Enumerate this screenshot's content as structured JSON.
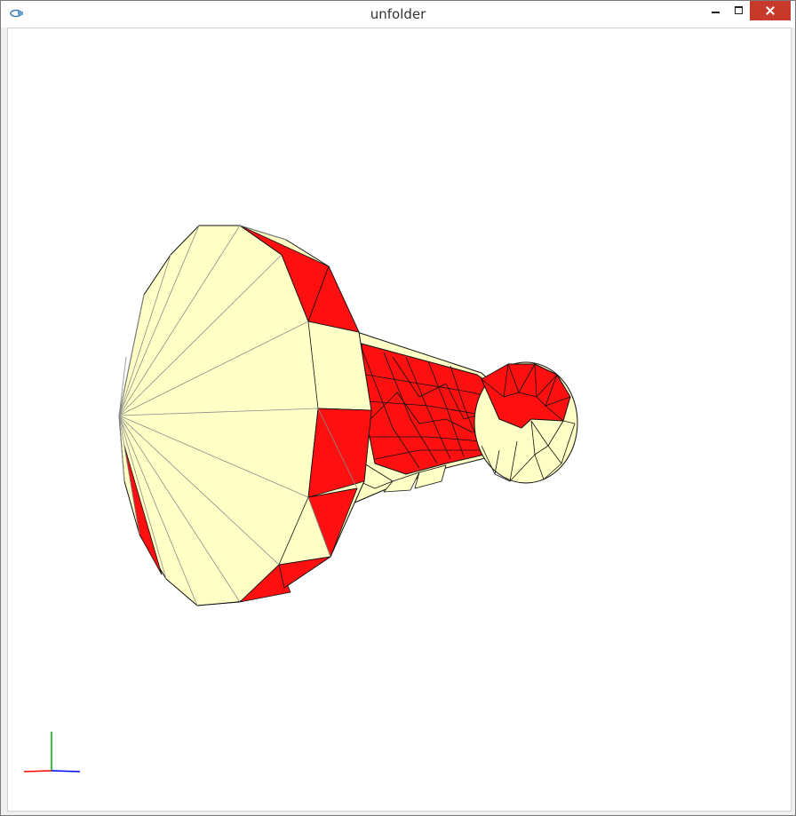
{
  "window": {
    "title": "unfolder"
  },
  "icons": {
    "app": "app-icon",
    "minimize": "minimize-icon",
    "maximize": "maximize-icon",
    "close": "close-icon"
  },
  "colors": {
    "face_light": "#ffffc6",
    "face_red": "#ff1010",
    "edge_dark": "#101010",
    "edge_grey": "#8c8c8c",
    "axis_x": "#ff0000",
    "axis_y": "#00aa00",
    "axis_z": "#0000ff",
    "close_button": "#c7392a"
  }
}
